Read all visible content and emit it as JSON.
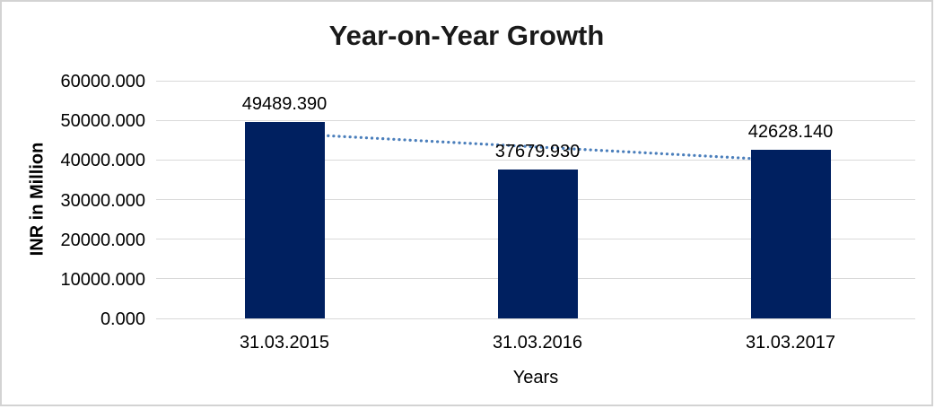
{
  "chart_data": {
    "type": "bar",
    "title": "Year-on-Year Growth",
    "categories": [
      "31.03.2015",
      "31.03.2016",
      "31.03.2017"
    ],
    "series": [
      {
        "name": "INR in Million",
        "values": [
          49489.39,
          37679.93,
          42628.14
        ]
      }
    ],
    "data_labels": [
      "49489.390",
      "37679.930",
      "42628.140"
    ],
    "xlabel": "Years",
    "ylabel": "INR in Million",
    "ylim": [
      0,
      60000
    ],
    "ytick_step": 10000,
    "ytick_labels": [
      "0.000",
      "10000.000",
      "20000.000",
      "30000.000",
      "40000.000",
      "50000.000",
      "60000.000"
    ],
    "grid": true,
    "legend": "none",
    "trendline": {
      "type": "linear",
      "style": "dotted"
    },
    "colors": {
      "bar": "#002060",
      "trendline": "#4a7ebb",
      "gridline": "#d9d9d9",
      "frame_border": "#d3d3d3",
      "text": "#000000"
    }
  }
}
